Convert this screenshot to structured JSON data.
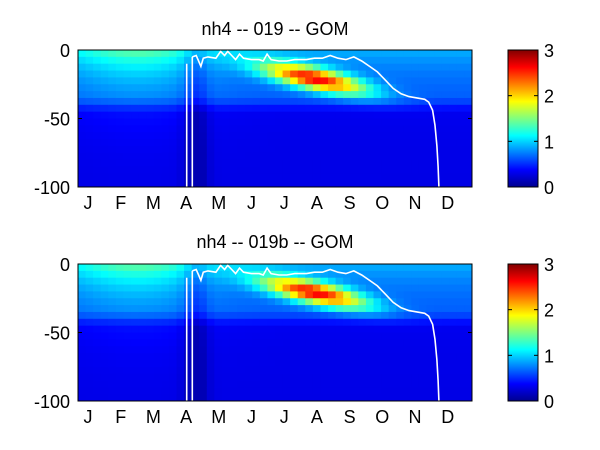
{
  "chart_data": [
    {
      "type": "heatmap",
      "title": "nh4 -- 019 -- GOM",
      "x_tick_labels": [
        "J",
        "F",
        "M",
        "A",
        "M",
        "J",
        "J",
        "A",
        "S",
        "O",
        "N",
        "D"
      ],
      "y_ticks": [
        0,
        -50,
        -100
      ],
      "ylim": [
        -100,
        0
      ],
      "colorbar": {
        "ticks": [
          0,
          1,
          2,
          3
        ],
        "range": [
          0,
          3
        ],
        "colormap": "jet"
      },
      "overlay_line_color": "#ffffff"
    },
    {
      "type": "heatmap",
      "title": "nh4 -- 019b -- GOM",
      "x_tick_labels": [
        "J",
        "F",
        "M",
        "A",
        "M",
        "J",
        "J",
        "A",
        "S",
        "O",
        "N",
        "D"
      ],
      "y_ticks": [
        0,
        -50,
        -100
      ],
      "ylim": [
        -100,
        0
      ],
      "colorbar": {
        "ticks": [
          0,
          1,
          2,
          3
        ],
        "range": [
          0,
          3
        ],
        "colormap": "jet"
      },
      "overlay_line_color": "#ffffff"
    }
  ]
}
